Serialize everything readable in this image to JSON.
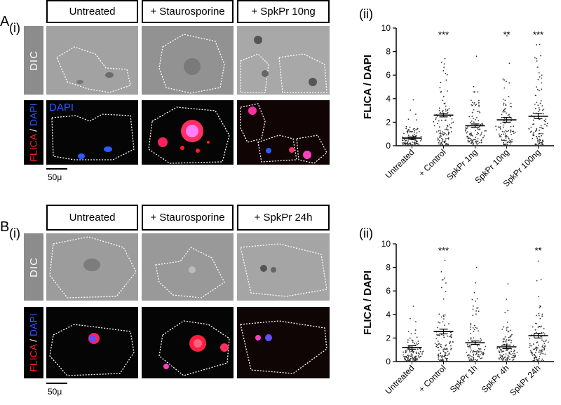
{
  "panels": [
    {
      "letter": "A",
      "sub_label_images": "(i)",
      "sub_label_chart": "(ii)",
      "conditions": [
        "Untreated",
        "+ Staurosporine",
        "+ SpkPr 10ng"
      ],
      "row_labels": {
        "dic": "DIC",
        "flica": "FLICA",
        "slash": " / ",
        "dapi": "DAPI"
      },
      "dapi_overlay": "DAPI",
      "scale_label": "50μ",
      "chart_data": {
        "type": "scatter",
        "ylabel": "FLICA / DAPI",
        "ylim": [
          0,
          10
        ],
        "yticks": [
          0,
          2,
          4,
          6,
          8,
          10
        ],
        "categories": [
          "Untreated",
          "+ Control",
          "SpkPr 1ng",
          "SpkPr 10ng",
          "SpkPr 100ng"
        ],
        "means": [
          0.65,
          2.6,
          1.7,
          2.2,
          2.5
        ],
        "sem_low": [
          0.55,
          2.45,
          1.55,
          2.0,
          2.3
        ],
        "sem_high": [
          0.75,
          2.75,
          1.85,
          2.4,
          2.75
        ],
        "max": [
          3.9,
          7.4,
          7.6,
          9.6,
          8.6
        ],
        "significance": [
          "",
          "***",
          "",
          "**",
          "***"
        ]
      }
    },
    {
      "letter": "B",
      "sub_label_images": "(i)",
      "sub_label_chart": "(ii)",
      "conditions": [
        "Untreated",
        "+ Staurosporine",
        "+ SpkPr 24h"
      ],
      "row_labels": {
        "dic": "DIC",
        "flica": "FLICA",
        "slash": " / ",
        "dapi": "DAPI"
      },
      "dapi_overlay": "",
      "scale_label": "50μ",
      "chart_data": {
        "type": "scatter",
        "ylabel": "FLICA / DAPI",
        "ylim": [
          0,
          10
        ],
        "yticks": [
          0,
          2,
          4,
          6,
          8,
          10
        ],
        "categories": [
          "Untreated",
          "+ Control",
          "SpkPr 1h",
          "SpkPr 4h",
          "SpkPr 24h"
        ],
        "means": [
          1.2,
          2.55,
          1.6,
          1.25,
          2.2
        ],
        "sem_low": [
          1.05,
          2.35,
          1.45,
          1.1,
          2.0
        ],
        "sem_high": [
          1.35,
          2.75,
          1.75,
          1.4,
          2.4
        ],
        "max": [
          4.7,
          8.6,
          8.0,
          6.6,
          9.6
        ],
        "significance": [
          "",
          "***",
          "",
          "",
          "**"
        ]
      }
    }
  ],
  "colors": {
    "dic_side": "#8c8c8c",
    "flica": "#ff2020",
    "dapi": "#2a5cff",
    "points": "#333333"
  }
}
